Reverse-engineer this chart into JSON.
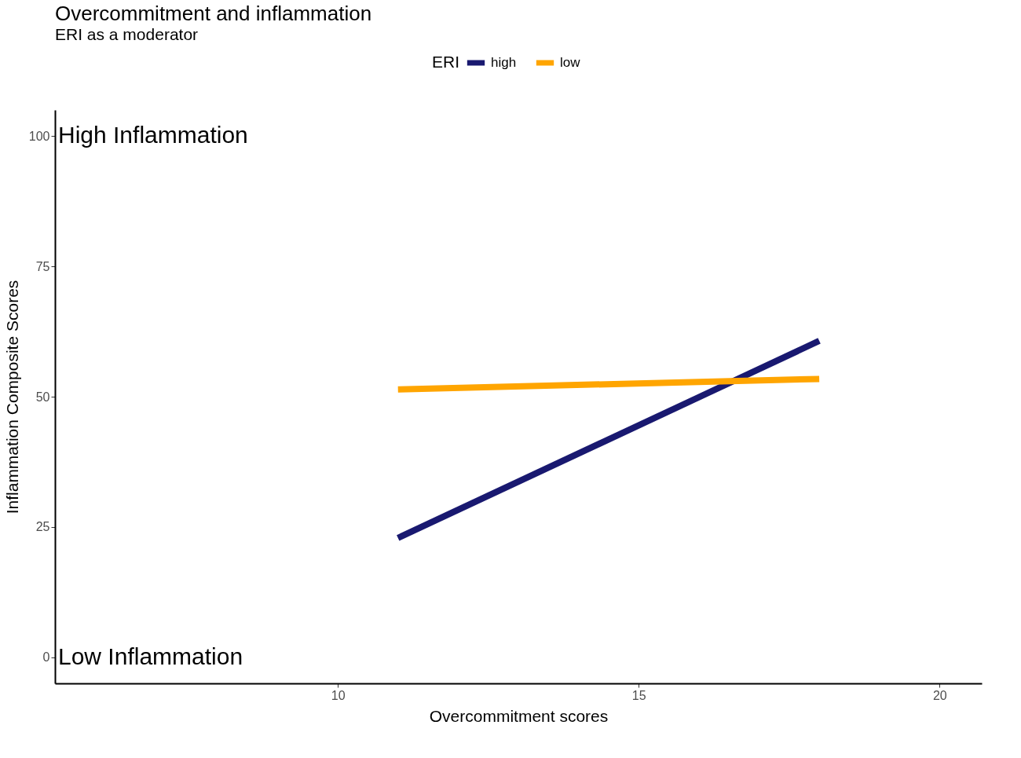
{
  "chart_data": {
    "type": "line",
    "title": "Overcommitment and inflammation",
    "subtitle": "ERI as a moderator",
    "xlabel": "Overcommitment scores",
    "ylabel": "Inflammation Composite Scores",
    "legend_title": "ERI",
    "x": [
      11,
      18
    ],
    "series": [
      {
        "name": "high",
        "color": "#191970",
        "values": [
          22.9,
          60.7
        ]
      },
      {
        "name": "low",
        "color": "#ffa500",
        "values": [
          51.4,
          53.4
        ]
      }
    ],
    "xlim": [
      5.3,
      20.7
    ],
    "ylim": [
      -5,
      105
    ],
    "xticks": [
      10,
      15,
      20
    ],
    "yticks": [
      0,
      25,
      50,
      75,
      100
    ],
    "annotations": [
      "High Inflammation",
      "Low Inflammation"
    ],
    "grid": false,
    "legend": "top",
    "marker": "none",
    "line_style": "solid"
  }
}
